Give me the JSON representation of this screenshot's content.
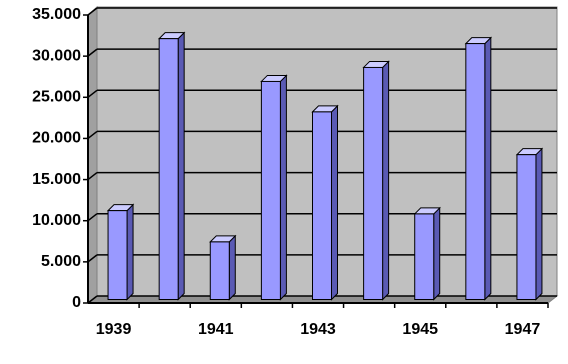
{
  "chart_data": {
    "type": "bar",
    "categories": [
      "1939",
      null,
      "1941",
      null,
      "1943",
      null,
      "1945",
      null,
      "1947"
    ],
    "values": [
      10800,
      31700,
      7000,
      26500,
      22800,
      28200,
      10400,
      31100,
      17600
    ],
    "color": "#9999ff",
    "ylim": [
      0,
      35000
    ],
    "yticks": [
      0,
      {
        "value": 5000,
        "label": "5.000"
      },
      {
        "value": 10000,
        "label": "10.000"
      },
      {
        "value": 15000,
        "label": "15.000"
      },
      {
        "value": 20000,
        "label": "20.000"
      },
      {
        "value": 25000,
        "label": "25.000"
      },
      {
        "value": 30000,
        "label": "30.000"
      },
      {
        "value": 35000,
        "label": "35.000"
      }
    ],
    "grid": true
  }
}
